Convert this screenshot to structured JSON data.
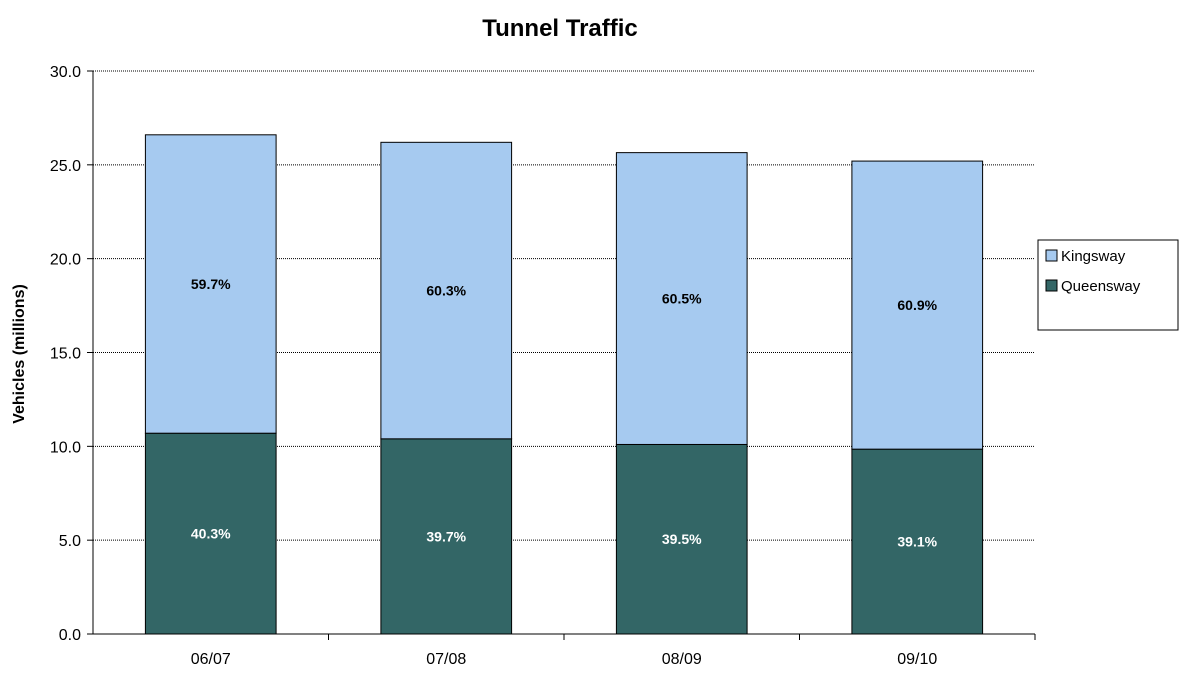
{
  "chart_data": {
    "type": "bar",
    "stacked": true,
    "title": "Tunnel Traffic",
    "xlabel": "",
    "ylabel": "Vehicles (millions)",
    "ylim": [
      0,
      30
    ],
    "yticks": [
      "0.0",
      "5.0",
      "10.0",
      "15.0",
      "20.0",
      "25.0",
      "30.0"
    ],
    "grid": true,
    "legend_position": "right",
    "categories": [
      "06/07",
      "07/08",
      "08/09",
      "09/10"
    ],
    "series": [
      {
        "name": "Queensway",
        "color": "#336666",
        "label_color": "#ffffff",
        "values": [
          10.7,
          10.4,
          10.1,
          9.85
        ],
        "labels": [
          "40.3%",
          "39.7%",
          "39.5%",
          "39.1%"
        ]
      },
      {
        "name": "Kingsway",
        "color": "#a6caf0",
        "label_color": "#000000",
        "values": [
          15.9,
          15.8,
          15.55,
          15.35
        ],
        "labels": [
          "59.7%",
          "60.3%",
          "60.5%",
          "60.9%"
        ]
      }
    ]
  }
}
